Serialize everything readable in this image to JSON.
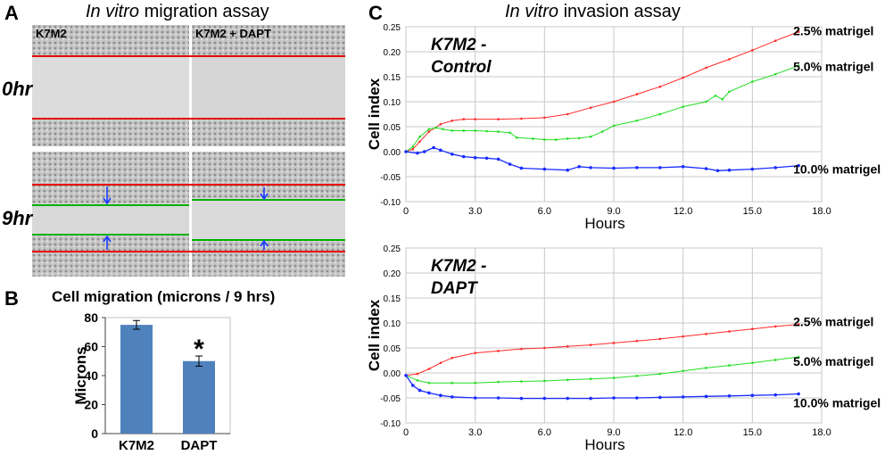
{
  "panel_a": {
    "letter": "A",
    "title_italic": "In vitro",
    "title_rest": " migration assay",
    "col_labels": [
      "K7M2",
      "K7M2 + DAPT"
    ],
    "row_labels": [
      "0hr",
      "9hr"
    ],
    "colors": {
      "edge_line": "#e60000",
      "front_line": "#00b000",
      "arrow": "#1a3cff"
    }
  },
  "panel_b": {
    "letter": "B"
  },
  "panel_c": {
    "letter": "C",
    "title_italic": "In vitro",
    "title_rest": " invasion assay"
  },
  "chart_data": [
    {
      "id": "cell-migration",
      "type": "bar",
      "title": "Cell migration (microns / 9 hrs)",
      "ylabel": "Microns",
      "xlabel": "",
      "categories": [
        "K7M2",
        "DAPT"
      ],
      "values": [
        75,
        50
      ],
      "errors": [
        3,
        3.5
      ],
      "annotations": [
        "",
        "*"
      ],
      "ylim": [
        0,
        80
      ],
      "yticks": [
        0,
        20,
        40,
        60,
        80
      ],
      "bar_color": "#4f81bd"
    },
    {
      "id": "invasion-control",
      "type": "line",
      "title": "K7M2 - Control",
      "title_lines": [
        "K7M2 -",
        "Control"
      ],
      "xlabel": "Hours",
      "ylabel": "Cell index",
      "xlim": [
        0,
        18
      ],
      "ylim": [
        -0.1,
        0.25
      ],
      "xticks": [
        0,
        3,
        6,
        9,
        12,
        15,
        18
      ],
      "xtick_labels": [
        "0",
        "3.0",
        "6.0",
        "9.0",
        "12.0",
        "15.0",
        "18.0"
      ],
      "yticks": [
        -0.1,
        -0.05,
        0,
        0.05,
        0.1,
        0.15,
        0.2,
        0.25
      ],
      "ytick_labels": [
        "-0.10",
        "-0.05",
        "0.00",
        "0.05",
        "0.10",
        "0.15",
        "0.20",
        "0.25"
      ],
      "series": [
        {
          "name": "2.5% matrigel",
          "color": "#ff2a2a",
          "stroke": 1,
          "marker": 1.3,
          "x": [
            0,
            0.3,
            0.6,
            1,
            1.5,
            2,
            2.5,
            3,
            4,
            5,
            6,
            7,
            8,
            9,
            10,
            11,
            12,
            13,
            14,
            15,
            16,
            17
          ],
          "y": [
            0,
            0.005,
            0.02,
            0.04,
            0.055,
            0.062,
            0.065,
            0.065,
            0.065,
            0.066,
            0.068,
            0.075,
            0.088,
            0.1,
            0.115,
            0.13,
            0.148,
            0.168,
            0.185,
            0.203,
            0.222,
            0.24
          ]
        },
        {
          "name": "5.0% matrigel",
          "color": "#22dd22",
          "stroke": 1,
          "marker": 1.3,
          "x": [
            0,
            0.3,
            0.6,
            1,
            1.3,
            1.6,
            2,
            2.5,
            3,
            3.5,
            4,
            4.5,
            4.8,
            5.5,
            6,
            6.5,
            7,
            7.5,
            8,
            8.5,
            9,
            10,
            11,
            12,
            13,
            13.4,
            13.7,
            14,
            15,
            16,
            17
          ],
          "y": [
            0,
            0.01,
            0.03,
            0.045,
            0.048,
            0.045,
            0.042,
            0.042,
            0.042,
            0.041,
            0.04,
            0.038,
            0.028,
            0.026,
            0.024,
            0.024,
            0.026,
            0.027,
            0.03,
            0.04,
            0.052,
            0.062,
            0.075,
            0.09,
            0.1,
            0.112,
            0.105,
            0.12,
            0.14,
            0.155,
            0.172
          ]
        },
        {
          "name": "10.0% matrigel",
          "color": "#1a2cff",
          "stroke": 1.3,
          "marker": 1.8,
          "x": [
            0,
            0.5,
            0.8,
            1.2,
            1.5,
            2,
            2.5,
            3,
            3.5,
            4,
            4.5,
            5,
            6,
            7,
            7.5,
            8,
            9,
            10,
            11,
            12,
            13,
            13.5,
            14,
            15,
            16,
            17
          ],
          "y": [
            0,
            -0.003,
            0,
            0.008,
            0.003,
            -0.005,
            -0.01,
            -0.012,
            -0.013,
            -0.015,
            -0.025,
            -0.033,
            -0.035,
            -0.037,
            -0.03,
            -0.032,
            -0.033,
            -0.032,
            -0.032,
            -0.03,
            -0.034,
            -0.038,
            -0.037,
            -0.035,
            -0.032,
            -0.028
          ]
        }
      ]
    },
    {
      "id": "invasion-dapt",
      "type": "line",
      "title": "K7M2 - DAPT",
      "title_lines": [
        "K7M2 -",
        "DAPT"
      ],
      "xlabel": "Hours",
      "ylabel": "Cell index",
      "xlim": [
        0,
        18
      ],
      "ylim": [
        -0.1,
        0.25
      ],
      "xticks": [
        0,
        3,
        6,
        9,
        12,
        15,
        18
      ],
      "xtick_labels": [
        "0",
        "3.0",
        "6.0",
        "9.0",
        "12.0",
        "15.0",
        "18.0"
      ],
      "yticks": [
        -0.1,
        -0.05,
        0,
        0.05,
        0.1,
        0.15,
        0.2,
        0.25
      ],
      "ytick_labels": [
        "-0.10",
        "-0.05",
        "0.00",
        "0.05",
        "0.10",
        "0.15",
        "0.20",
        "0.25"
      ],
      "series": [
        {
          "name": "2.5% matrigel",
          "color": "#ff2a2a",
          "stroke": 1,
          "marker": 1.3,
          "x": [
            0,
            0.5,
            1,
            1.5,
            2,
            3,
            4,
            5,
            6,
            7,
            8,
            9,
            10,
            11,
            12,
            13,
            14,
            15,
            16,
            17
          ],
          "y": [
            -0.005,
            -0.002,
            0.008,
            0.02,
            0.03,
            0.04,
            0.044,
            0.048,
            0.05,
            0.053,
            0.056,
            0.06,
            0.064,
            0.068,
            0.073,
            0.078,
            0.083,
            0.088,
            0.093,
            0.097
          ]
        },
        {
          "name": "5.0% matrigel",
          "color": "#22dd22",
          "stroke": 1,
          "marker": 1.3,
          "x": [
            0,
            0.5,
            1,
            2,
            3,
            4,
            5,
            6,
            7,
            8,
            9,
            10,
            11,
            12,
            13,
            14,
            15,
            16,
            17
          ],
          "y": [
            -0.005,
            -0.015,
            -0.02,
            -0.02,
            -0.02,
            -0.018,
            -0.017,
            -0.016,
            -0.014,
            -0.012,
            -0.01,
            -0.006,
            -0.002,
            0.004,
            0.01,
            0.015,
            0.02,
            0.026,
            0.032
          ]
        },
        {
          "name": "10.0% matrigel",
          "color": "#1a2cff",
          "stroke": 1.3,
          "marker": 1.8,
          "x": [
            0,
            0.3,
            0.6,
            1,
            1.5,
            2,
            3,
            4,
            5,
            6,
            7,
            8,
            9,
            10,
            11,
            12,
            13,
            14,
            15,
            16,
            17
          ],
          "y": [
            -0.005,
            -0.025,
            -0.035,
            -0.04,
            -0.045,
            -0.048,
            -0.05,
            -0.05,
            -0.051,
            -0.051,
            -0.051,
            -0.051,
            -0.05,
            -0.05,
            -0.049,
            -0.048,
            -0.047,
            -0.046,
            -0.045,
            -0.044,
            -0.042
          ]
        }
      ]
    }
  ]
}
